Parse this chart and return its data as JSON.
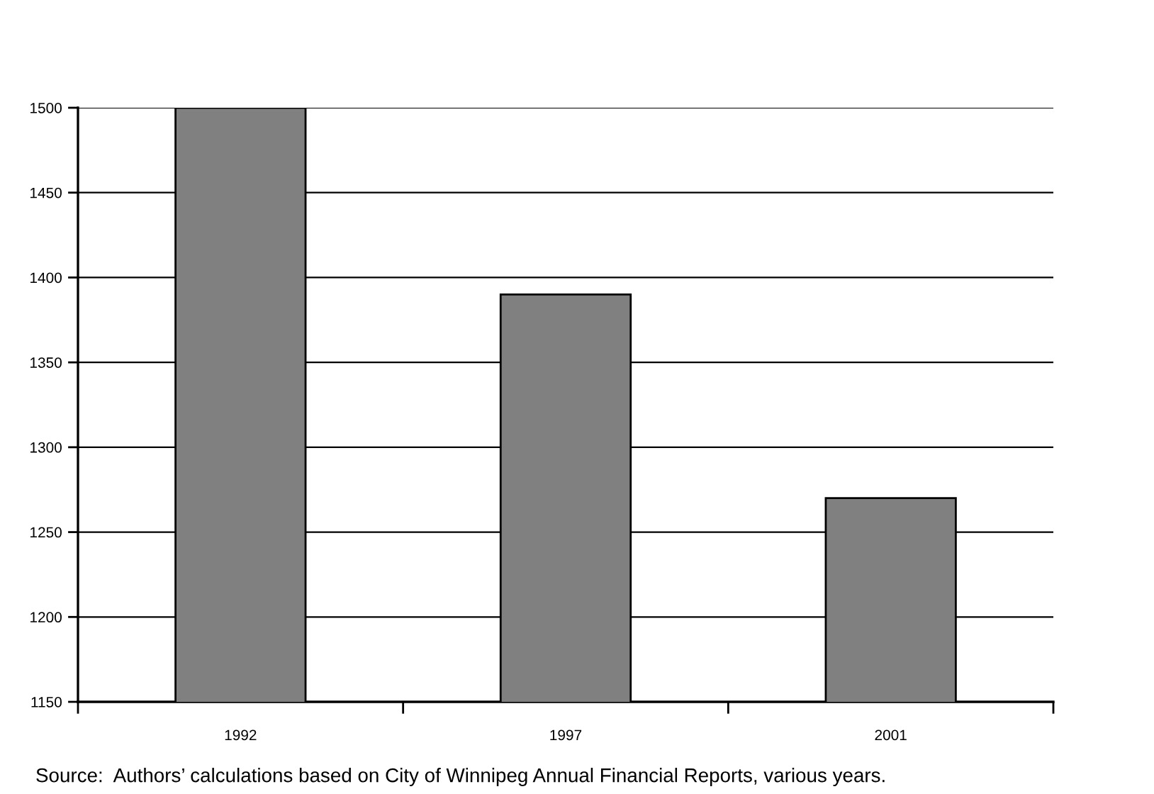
{
  "chart_data": {
    "type": "bar",
    "categories": [
      "1992",
      "1997",
      "2001"
    ],
    "values": [
      1500,
      1390,
      1270
    ],
    "color": "#808080",
    "ylim": [
      1150,
      1500
    ],
    "yticks": [
      1150,
      1200,
      1250,
      1300,
      1350,
      1400,
      1450,
      1500
    ],
    "grid": "y",
    "annotations": [
      "Source:  Authors’ calculations based on City of Winnipeg Annual Financial Reports, various years."
    ]
  }
}
